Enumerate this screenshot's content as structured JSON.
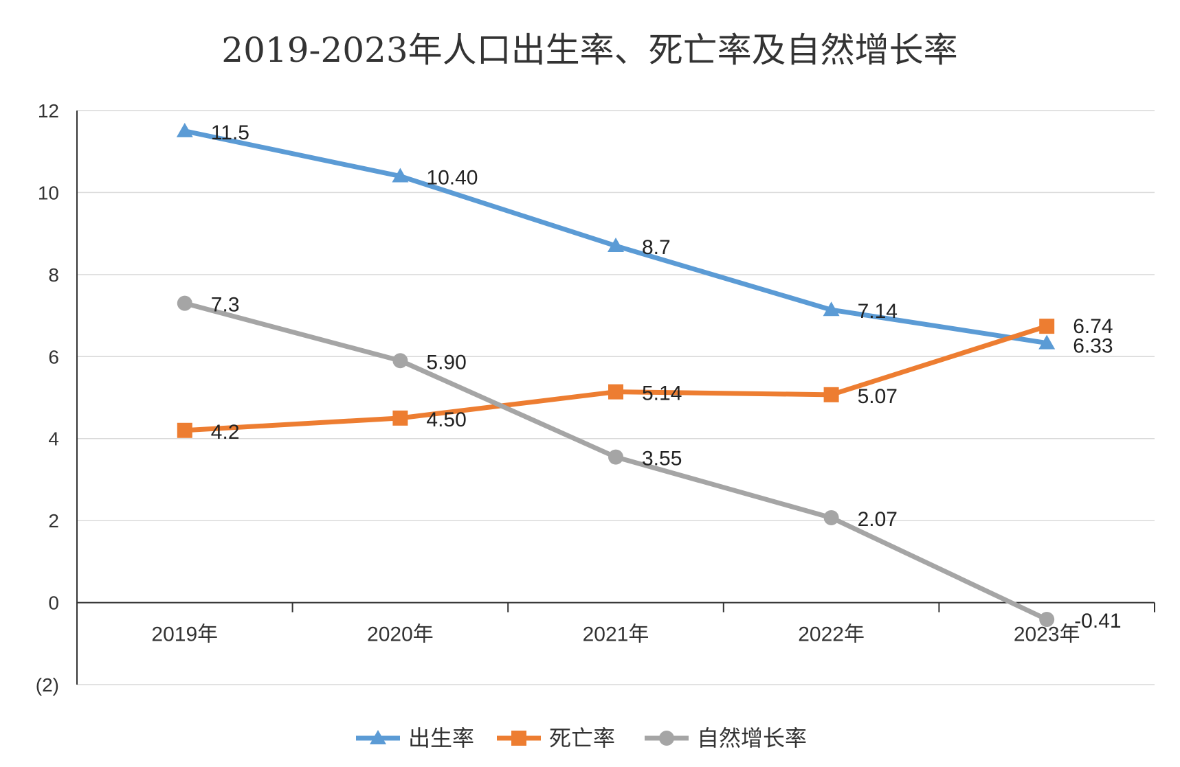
{
  "chart_data": {
    "type": "line",
    "title": "2019-2023年人口出生率、死亡率及自然增长率",
    "xlabel": "",
    "ylabel": "",
    "categories": [
      "2019年",
      "2020年",
      "2021年",
      "2022年",
      "2023年"
    ],
    "ylim": [
      -2,
      12
    ],
    "y_ticks": [
      -2,
      0,
      2,
      4,
      6,
      8,
      10,
      12
    ],
    "y_tick_labels": [
      "(2)",
      "0",
      "2",
      "4",
      "6",
      "8",
      "10",
      "12"
    ],
    "grid": true,
    "legend_position": "bottom",
    "series": [
      {
        "name": "出生率",
        "marker": "triangle",
        "color": "#5B9BD5",
        "values": [
          11.5,
          10.4,
          8.7,
          7.14,
          6.33
        ],
        "labels": [
          "11.5",
          "10.40",
          "8.7",
          "7.14",
          "6.33"
        ]
      },
      {
        "name": "死亡率",
        "marker": "square",
        "color": "#ED7D31",
        "values": [
          4.2,
          4.5,
          5.14,
          5.07,
          6.74
        ],
        "labels": [
          "4.2",
          "4.50",
          "5.14",
          "5.07",
          "6.74"
        ]
      },
      {
        "name": "自然增长率",
        "marker": "circle",
        "color": "#A5A5A5",
        "values": [
          7.3,
          5.9,
          3.55,
          2.07,
          -0.41
        ],
        "labels": [
          "7.3",
          "5.90",
          "3.55",
          "2.07",
          "-0.41"
        ]
      }
    ],
    "negative_color": "#FF0000"
  }
}
